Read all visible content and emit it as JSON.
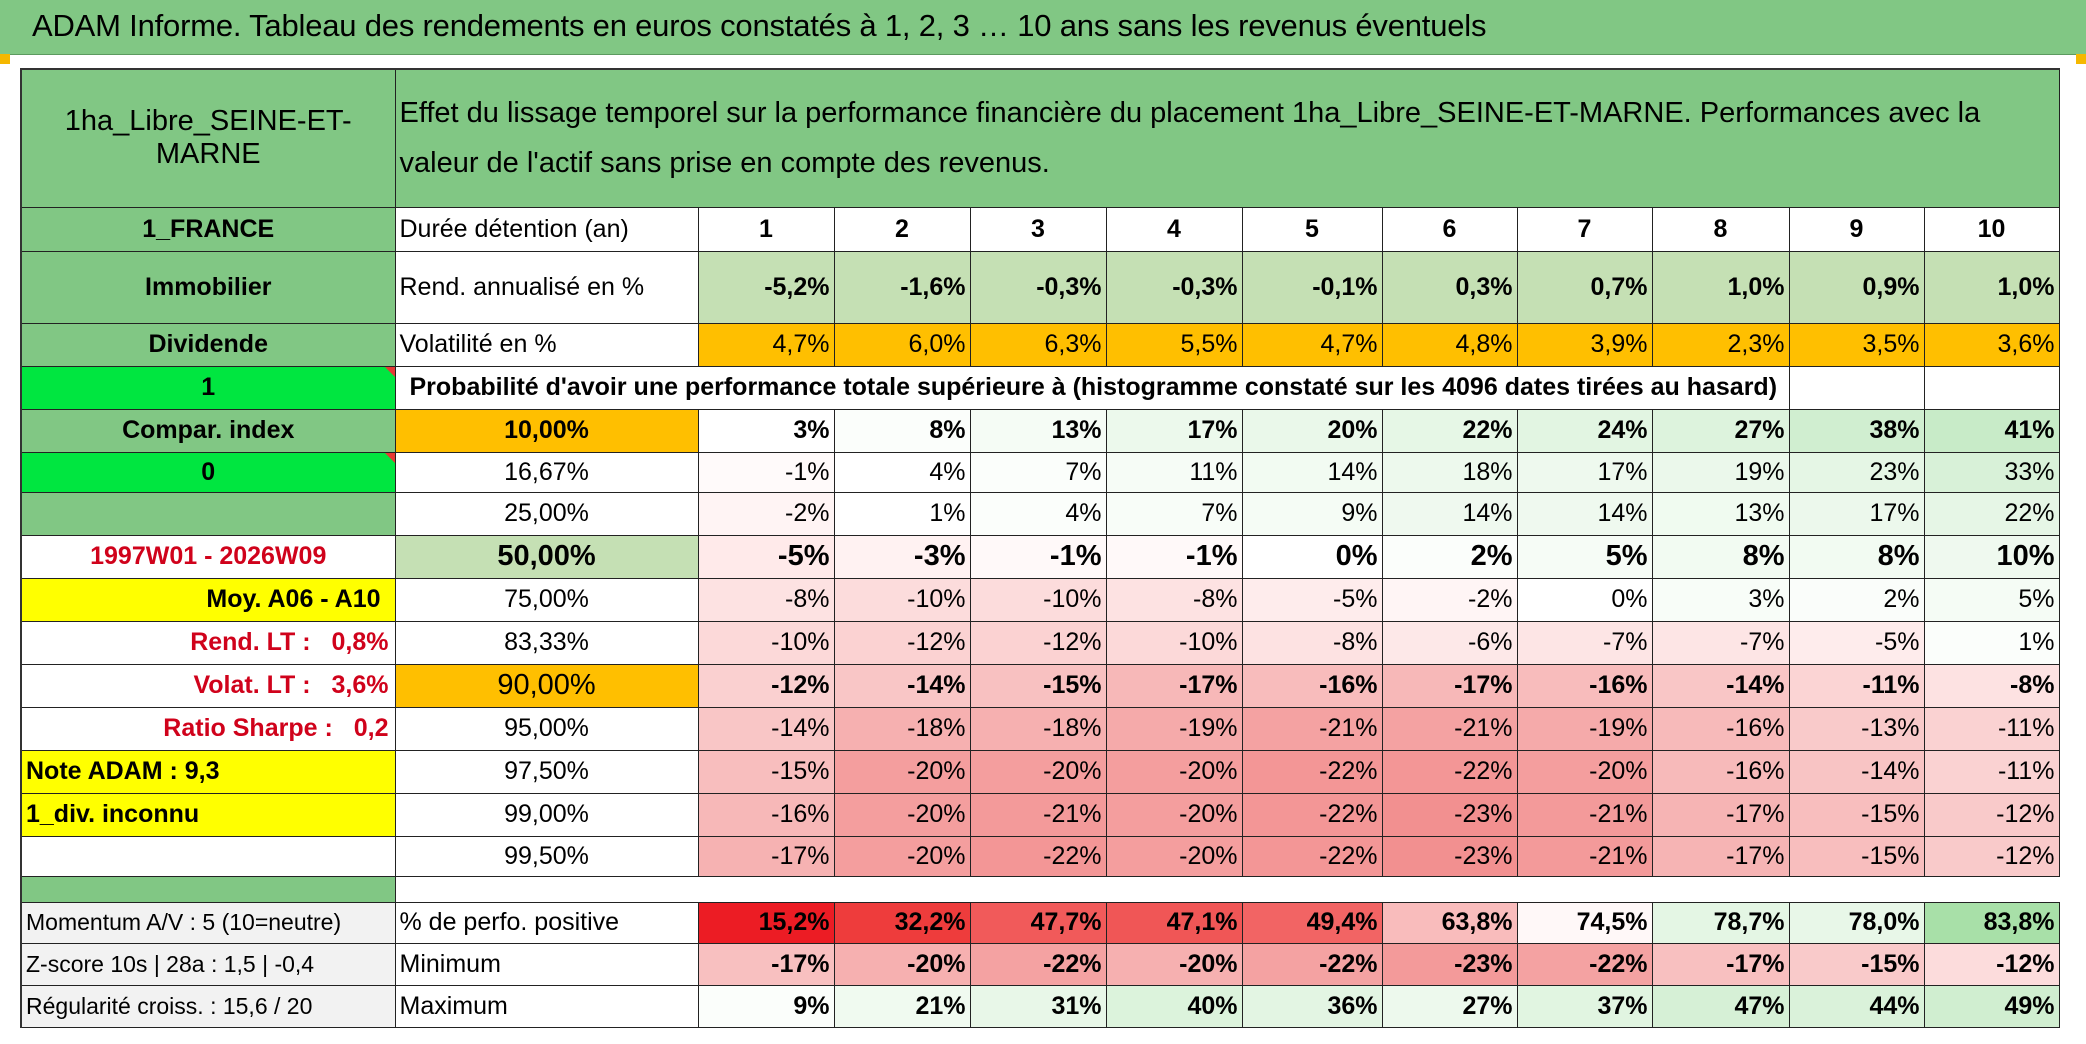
{
  "banner": {
    "title": "ADAM Informe. Tableau des rendements en euros constatés à 1, 2, 3 … 10 ans sans les revenus éventuels"
  },
  "colors": {
    "header_green": "#81c784",
    "light_green": "#c5e0b4",
    "bright_green": "#00e640",
    "yellow": "#ffff00",
    "orange": "#ffbf00",
    "red_text": "#d0021b"
  },
  "header": {
    "asset_name": "1ha_Libre_SEINE-ET-MARNE",
    "description": "Effet du lissage temporel sur la performance financière du placement 1ha_Libre_SEINE-ET-MARNE. Performances avec la valeur de l'actif sans prise en compte des revenus."
  },
  "sidebar": {
    "country": "1_FRANCE",
    "category": "Immobilier",
    "income_type": "Dividende",
    "selector_1": "1",
    "compar_index": "Compar. index",
    "selector_0": "0",
    "blank": "",
    "period": "1997W01 - 2026W09",
    "moy": "Moy. A06 - A10",
    "rend_lt_label": "Rend. LT :",
    "rend_lt_value": "0,8%",
    "volat_lt_label": "Volat. LT :",
    "volat_lt_value": "3,6%",
    "sharpe_label": "Ratio Sharpe :",
    "sharpe_value": "0,2",
    "note_adam": "Note ADAM : 9,3",
    "div_inconnu": "1_div. inconnu"
  },
  "durations": {
    "label": "Durée détention (an)",
    "years": [
      "1",
      "2",
      "3",
      "4",
      "5",
      "6",
      "7",
      "8",
      "9",
      "10"
    ]
  },
  "rend_annualise": {
    "label": "Rend. annualisé en %",
    "values": [
      "-5,2%",
      "-1,6%",
      "-0,3%",
      "-0,3%",
      "-0,1%",
      "0,3%",
      "0,7%",
      "1,0%",
      "0,9%",
      "1,0%"
    ]
  },
  "volatilite": {
    "label": "Volatilité en %",
    "values": [
      "4,7%",
      "6,0%",
      "6,3%",
      "5,5%",
      "4,7%",
      "4,8%",
      "3,9%",
      "2,3%",
      "3,5%",
      "3,6%"
    ]
  },
  "probability_title": "Probabilité d'avoir une performance totale supérieure à (histogramme constaté sur les 4096 dates tirées au hasard)",
  "percentiles": [
    {
      "label": "10,00%",
      "values": [
        "3%",
        "8%",
        "13%",
        "17%",
        "20%",
        "22%",
        "24%",
        "27%",
        "38%",
        "41%"
      ]
    },
    {
      "label": "16,67%",
      "values": [
        "-1%",
        "4%",
        "7%",
        "11%",
        "14%",
        "18%",
        "17%",
        "19%",
        "23%",
        "33%"
      ]
    },
    {
      "label": "25,00%",
      "values": [
        "-2%",
        "1%",
        "4%",
        "7%",
        "9%",
        "14%",
        "14%",
        "13%",
        "17%",
        "22%"
      ]
    },
    {
      "label": "50,00%",
      "values": [
        "-5%",
        "-3%",
        "-1%",
        "-1%",
        "0%",
        "2%",
        "5%",
        "8%",
        "8%",
        "10%"
      ]
    },
    {
      "label": "75,00%",
      "values": [
        "-8%",
        "-10%",
        "-10%",
        "-8%",
        "-5%",
        "-2%",
        "0%",
        "3%",
        "2%",
        "5%"
      ]
    },
    {
      "label": "83,33%",
      "values": [
        "-10%",
        "-12%",
        "-12%",
        "-10%",
        "-8%",
        "-6%",
        "-7%",
        "-7%",
        "-5%",
        "1%"
      ]
    },
    {
      "label": "90,00%",
      "values": [
        "-12%",
        "-14%",
        "-15%",
        "-17%",
        "-16%",
        "-17%",
        "-16%",
        "-14%",
        "-11%",
        "-8%"
      ]
    },
    {
      "label": "95,00%",
      "values": [
        "-14%",
        "-18%",
        "-18%",
        "-19%",
        "-21%",
        "-21%",
        "-19%",
        "-16%",
        "-13%",
        "-11%"
      ]
    },
    {
      "label": "97,50%",
      "values": [
        "-15%",
        "-20%",
        "-20%",
        "-20%",
        "-22%",
        "-22%",
        "-20%",
        "-16%",
        "-14%",
        "-11%"
      ]
    },
    {
      "label": "99,00%",
      "values": [
        "-16%",
        "-20%",
        "-21%",
        "-20%",
        "-22%",
        "-23%",
        "-21%",
        "-17%",
        "-15%",
        "-12%"
      ]
    },
    {
      "label": "99,50%",
      "values": [
        "-17%",
        "-20%",
        "-22%",
        "-20%",
        "-22%",
        "-23%",
        "-21%",
        "-17%",
        "-15%",
        "-12%"
      ]
    }
  ],
  "footer": {
    "momentum": "Momentum A/V : 5 (10=neutre)",
    "zscore": "Z-score 10s | 28a : 1,5 | -0,4",
    "regularite": "Régularité croiss. : 15,6 / 20",
    "positive": {
      "label": "% de perfo. positive",
      "values": [
        "15,2%",
        "32,2%",
        "47,7%",
        "47,1%",
        "49,4%",
        "63,8%",
        "74,5%",
        "78,7%",
        "78,0%",
        "83,8%"
      ]
    },
    "minimum": {
      "label": "Minimum",
      "values": [
        "-17%",
        "-20%",
        "-22%",
        "-20%",
        "-22%",
        "-23%",
        "-22%",
        "-17%",
        "-15%",
        "-12%"
      ]
    },
    "maximum": {
      "label": "Maximum",
      "values": [
        "9%",
        "21%",
        "31%",
        "40%",
        "36%",
        "27%",
        "37%",
        "47%",
        "44%",
        "49%"
      ]
    }
  }
}
